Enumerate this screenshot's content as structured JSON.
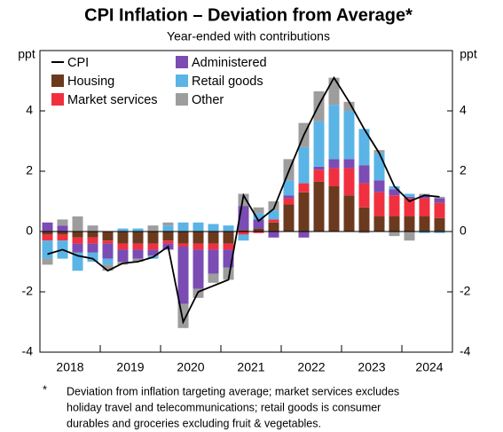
{
  "chart_data": {
    "type": "bar",
    "title": "CPI Inflation – Deviation from Average*",
    "subtitle": "Year-ended with contributions",
    "ylabel": "ppt",
    "y2label": "ppt",
    "stacked": true,
    "grid": false,
    "categories": [
      null,
      "2018",
      null,
      null,
      null,
      "2019",
      null,
      null,
      null,
      "2020",
      null,
      null,
      null,
      "2021",
      null,
      null,
      null,
      "2022",
      null,
      null,
      null,
      "2023",
      null,
      null,
      null,
      "2024",
      null
    ],
    "ylim": [
      -4,
      6
    ],
    "yticks": [
      -4,
      -2,
      0,
      2,
      4
    ],
    "y2lim": [
      -4,
      6
    ],
    "y2ticks": [
      -4,
      -2,
      0,
      2,
      4
    ],
    "series": [
      {
        "name": "Housing",
        "color": "#6b3a1e",
        "values": [
          -0.1,
          -0.1,
          -0.2,
          -0.2,
          -0.3,
          -0.4,
          -0.4,
          -0.4,
          -0.3,
          -0.4,
          -0.4,
          -0.4,
          -0.4,
          0.05,
          0.1,
          0.3,
          0.9,
          1.3,
          1.65,
          1.5,
          1.2,
          0.8,
          0.5,
          0.5,
          0.5,
          0.5,
          0.45
        ]
      },
      {
        "name": "Market services",
        "color": "#f0303f",
        "values": [
          -0.2,
          -0.2,
          -0.2,
          -0.2,
          -0.1,
          -0.2,
          -0.2,
          -0.2,
          -0.1,
          -0.1,
          -0.2,
          -0.2,
          -0.2,
          -0.1,
          -0.05,
          0.1,
          0.2,
          0.3,
          0.4,
          0.6,
          0.9,
          0.8,
          0.8,
          0.7,
          0.6,
          0.6,
          0.5
        ]
      },
      {
        "name": "Administered",
        "color": "#7b4cb3",
        "values": [
          0.3,
          0.2,
          -0.3,
          -0.3,
          -0.5,
          -0.4,
          -0.3,
          -0.2,
          -0.2,
          -1.9,
          -1.3,
          -0.8,
          -0.6,
          0.8,
          0.3,
          -0.2,
          0.1,
          -0.2,
          0.1,
          0.3,
          0.3,
          0.6,
          0.4,
          0.2,
          0.05,
          0.1,
          0.15
        ]
      },
      {
        "name": "Retail goods",
        "color": "#5ab4e6",
        "values": [
          -0.6,
          -0.6,
          -0.6,
          -0.3,
          -0.2,
          0.1,
          0.1,
          -0.1,
          0.2,
          0.3,
          0.3,
          0.25,
          0.2,
          -0.2,
          0.2,
          0.3,
          0.5,
          1.2,
          1.5,
          1.8,
          1.6,
          1.2,
          0.9,
          0.1,
          0.1,
          -0.05,
          -0.05
        ]
      },
      {
        "name": "Other",
        "color": "#9d9d9d",
        "values": [
          -0.2,
          0.2,
          0.5,
          0.2,
          -0.2,
          -0.1,
          -0.1,
          0.2,
          0.1,
          -0.8,
          -0.3,
          -0.3,
          -0.4,
          0.4,
          0.2,
          0.3,
          0.7,
          0.8,
          1.0,
          0.9,
          0.3,
          -0.05,
          0.1,
          -0.15,
          -0.3,
          0.05,
          0.05
        ]
      },
      {
        "name": "CPI",
        "type": "line",
        "color": "#000000",
        "values": [
          -0.75,
          -0.6,
          -0.8,
          -0.9,
          -1.3,
          -1.05,
          -1.0,
          -0.85,
          -0.5,
          -3.0,
          -2.0,
          -1.8,
          -1.6,
          1.2,
          0.35,
          0.75,
          2.0,
          3.2,
          4.2,
          5.1,
          4.3,
          3.4,
          2.6,
          1.5,
          1.0,
          1.2,
          1.15
        ]
      }
    ],
    "legend": "top-left",
    "footnote": {
      "marker": "*",
      "lines": [
        "Deviation from inflation targeting average; market services excludes",
        "holiday travel and telecommunications; retail goods is consumer",
        "durables and groceries excluding fruit & vegetables."
      ]
    }
  }
}
